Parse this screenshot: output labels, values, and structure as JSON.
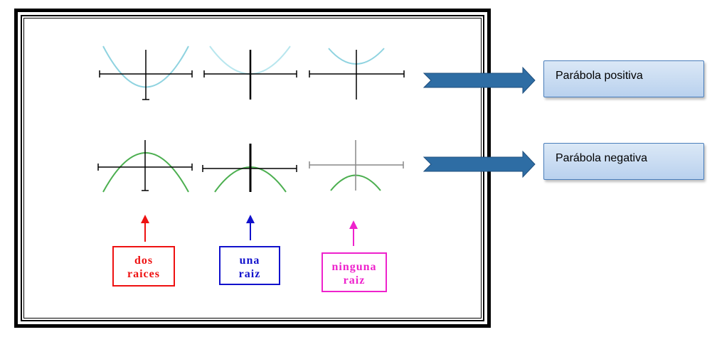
{
  "roots": {
    "first": [
      "dos",
      "raices"
    ],
    "second": [
      "una",
      "raiz"
    ],
    "third": [
      "ninguna",
      "raiz"
    ]
  },
  "callouts": {
    "positive": "Parábola positiva",
    "negative": "Parábola negativa"
  },
  "colors": {
    "positive_parabola": "#8fd3e0",
    "negative_parabola": "#4caf50",
    "dos_raices": "#ee1111",
    "una_raiz": "#1111cc",
    "ninguna_raiz": "#ee22cc",
    "arrow_fill": "#2e6da4"
  }
}
